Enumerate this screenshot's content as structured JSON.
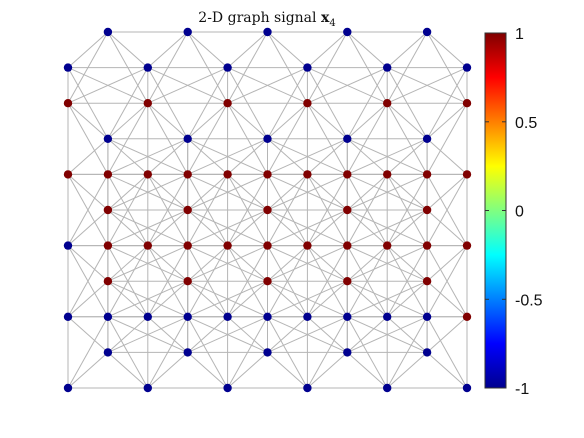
{
  "chart_data": {
    "type": "scatter",
    "title_prefix": "2-D graph signal ",
    "title_symbol": "x",
    "title_subscript": "4",
    "xlabel": "",
    "ylabel": "",
    "grid": false,
    "colorbar": {
      "colormap": "jet",
      "range": [
        -1,
        1
      ],
      "ticks": [
        1,
        0.5,
        0,
        -0.5,
        -1
      ],
      "tick_labels": [
        "1",
        "0.5",
        "0",
        "-0.5",
        "-1"
      ],
      "placement": "right"
    },
    "colors": {
      "positive_node": "#800000",
      "negative_node": "#00008f",
      "edge": "#b5b5b5"
    },
    "xlim": [
      -1,
      1
    ],
    "ylim": [
      -1,
      1
    ],
    "node_x": [
      -1,
      -0.8,
      -0.6,
      -0.4,
      -0.2,
      0,
      0.2,
      0.4,
      0.6,
      0.8,
      1
    ],
    "node_y": [
      1,
      0.8,
      0.6,
      0.4,
      0.2,
      0,
      -0.2,
      -0.4,
      -0.6,
      -0.8,
      -1
    ],
    "x_values": [
      [
        0,
        -1,
        0,
        -1,
        0,
        -1,
        0,
        -1,
        0,
        -1,
        0
      ],
      [
        -1,
        0,
        -1,
        0,
        -1,
        0,
        -1,
        0,
        -1,
        0,
        -1
      ],
      [
        1,
        0,
        1,
        0,
        1,
        0,
        1,
        0,
        1,
        0,
        1
      ],
      [
        0,
        -1,
        0,
        -1,
        0,
        -1,
        0,
        -1,
        0,
        -1,
        0
      ],
      [
        1,
        1,
        1,
        1,
        1,
        1,
        1,
        1,
        1,
        1,
        1
      ],
      [
        0,
        1,
        0,
        1,
        0,
        1,
        0,
        1,
        0,
        1,
        0
      ],
      [
        -1,
        1,
        1,
        1,
        1,
        1,
        1,
        1,
        1,
        1,
        1
      ],
      [
        0,
        1,
        0,
        1,
        0,
        1,
        0,
        1,
        0,
        1,
        0
      ],
      [
        -1,
        -1,
        -1,
        -1,
        -1,
        -1,
        -1,
        -1,
        -1,
        -1,
        1
      ],
      [
        0,
        -1,
        0,
        -1,
        0,
        -1,
        0,
        -1,
        0,
        -1,
        0
      ],
      [
        -1,
        0,
        -1,
        0,
        -1,
        0,
        -1,
        0,
        -1,
        0,
        -1
      ]
    ]
  }
}
